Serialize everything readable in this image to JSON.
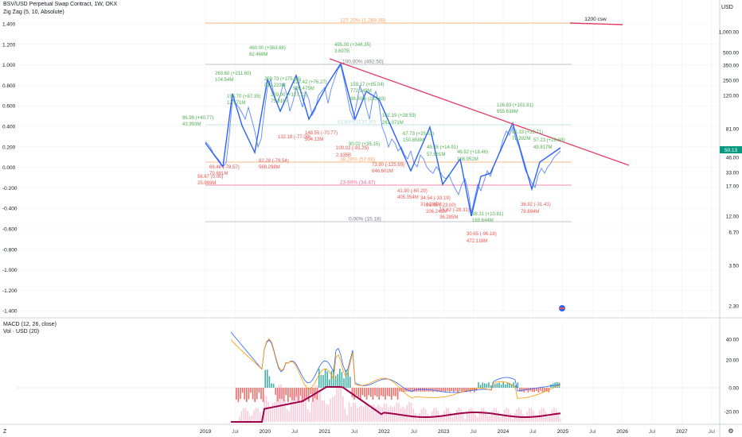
{
  "header": {
    "title": "BSV/USD Perpetual Swap Contract, 1W, OKX",
    "indicator": "Zig Zag (5, 10, Absolute)",
    "currency": "USD"
  },
  "price_badge": "50.13",
  "sub_header": {
    "macd": "MACD (12, 26, close)",
    "vol": "Vol · USD (20)"
  },
  "bottom_corner": "Z",
  "right_corner": "⚙",
  "colors": {
    "price_line": "#2962ff",
    "zigzag": "#2962ff",
    "trendline": "#e33d62",
    "fib_top": "#f7a35c",
    "fib_mid": "#7cb5ec",
    "fib_low": "#f06292",
    "up_label": "#4caf50",
    "down_label": "#ef5350",
    "hist_up": "#26a69a",
    "hist_down": "#ef5350",
    "macd_line": "#2962ff",
    "signal_line": "#ff9800",
    "vol_line": "#a0004a",
    "vol_bar": "#f8bbd0"
  },
  "chart_data": {
    "type": "line",
    "left_axis": [
      "1.400",
      "1.200",
      "1.000",
      "0.800",
      "0.600",
      "0.400",
      "0.200",
      "0.000",
      "-0.200",
      "-0.400",
      "-0.600",
      "-0.800",
      "-1.000",
      "-1.200",
      "-1.400"
    ],
    "right_axis": [
      "1,000.00",
      "500.00",
      "350.00",
      "250.00",
      "120.00",
      "81.00",
      "46.00",
      "33.00",
      "17.00",
      "12.00",
      "6.70",
      "3.50",
      "2.30"
    ],
    "macd_axis": [
      "40.00",
      "20.00",
      "0.00",
      "-20.00"
    ],
    "x_ticks": [
      "2019",
      "Jul",
      "2020",
      "Jul",
      "2021",
      "Jul",
      "2022",
      "Jul",
      "2023",
      "Jul",
      "2024",
      "Jul",
      "2025",
      "Jul",
      "2026",
      "Jul",
      "2027",
      "Jul"
    ],
    "fib_levels": [
      {
        "label": "127.20% (1,269.38)"
      },
      {
        "label": "100.00% (492.50)"
      },
      {
        "label": "61.80% (137.30)"
      },
      {
        "label": "38.20% (57.60)"
      },
      {
        "label": "23.60% (34.47)"
      },
      {
        "label": "0.00% (15.18)"
      }
    ],
    "annotation": "1200 csw",
    "zigzag_labels": [
      {
        "t": "495.00 (+346.35)"
      },
      {
        "t": "3.697B"
      },
      {
        "t": "460.00 (+363.68)"
      },
      {
        "t": "62.468M"
      },
      {
        "t": "260.60 (+211.60)"
      },
      {
        "t": "104.54M"
      },
      {
        "t": "259.00 (+127.72)"
      },
      {
        "t": "75.81M"
      },
      {
        "t": "259.73 (+175.63)"
      },
      {
        "t": "919.223M"
      },
      {
        "t": "227.42 (+76.27)"
      },
      {
        "t": "999.475M"
      },
      {
        "t": "156.70 (+87.35)"
      },
      {
        "t": "12.671M"
      },
      {
        "t": "159.17 (+85.04)"
      },
      {
        "t": "772.149M"
      },
      {
        "t": "98.60% (233.63)"
      },
      {
        "t": "102.19 (+28.59)"
      },
      {
        "t": "261.071M"
      },
      {
        "t": "126.83 (+101.91)"
      },
      {
        "t": "655.638M"
      },
      {
        "t": "96.99 (+40.77)"
      },
      {
        "t": "43.993M"
      },
      {
        "t": "67.73 (+25.63)"
      },
      {
        "t": "150.858M"
      },
      {
        "t": "58.33 (+32.71)"
      },
      {
        "t": "78.392M"
      },
      {
        "t": "57.23 (+26.68)"
      },
      {
        "t": "49.817M"
      },
      {
        "t": "49.45 (+14.91)"
      },
      {
        "t": "57.881M"
      },
      {
        "t": "46.92 (+18.46)"
      },
      {
        "t": "108.052M"
      },
      {
        "t": "90.02 (+35.15)"
      },
      {
        "t": "56.67 (0.00)"
      },
      {
        "t": "25.969M"
      },
      {
        "t": "69.48 (-78.57)"
      },
      {
        "t": "70.681M"
      },
      {
        "t": "82.28 (-79.54)"
      },
      {
        "t": "569.298M"
      },
      {
        "t": "132.18 (-77.09)"
      },
      {
        "t": "148.55 (-70.77)"
      },
      {
        "t": "504.13M"
      },
      {
        "t": "100.02 (-91.25)"
      },
      {
        "t": "2.335B"
      },
      {
        "t": "73.80 (-125.69)"
      },
      {
        "t": "846.601M"
      },
      {
        "t": "41.90 (-60.29)"
      },
      {
        "t": "405.354M"
      },
      {
        "t": "34.54 (-33.19)"
      },
      {
        "t": "314.285M"
      },
      {
        "t": "26.45 (-23.00)"
      },
      {
        "t": "206.241M"
      },
      {
        "t": "15.62 (-28.31)"
      },
      {
        "t": "36.285M"
      },
      {
        "t": "30.65 (-96.18)"
      },
      {
        "t": "472.118M"
      },
      {
        "t": "36.92 (-31.41)"
      },
      {
        "t": "78.694M"
      },
      {
        "t": "38.31 (+10.81)"
      },
      {
        "t": "169.644M"
      }
    ],
    "grid": true
  }
}
